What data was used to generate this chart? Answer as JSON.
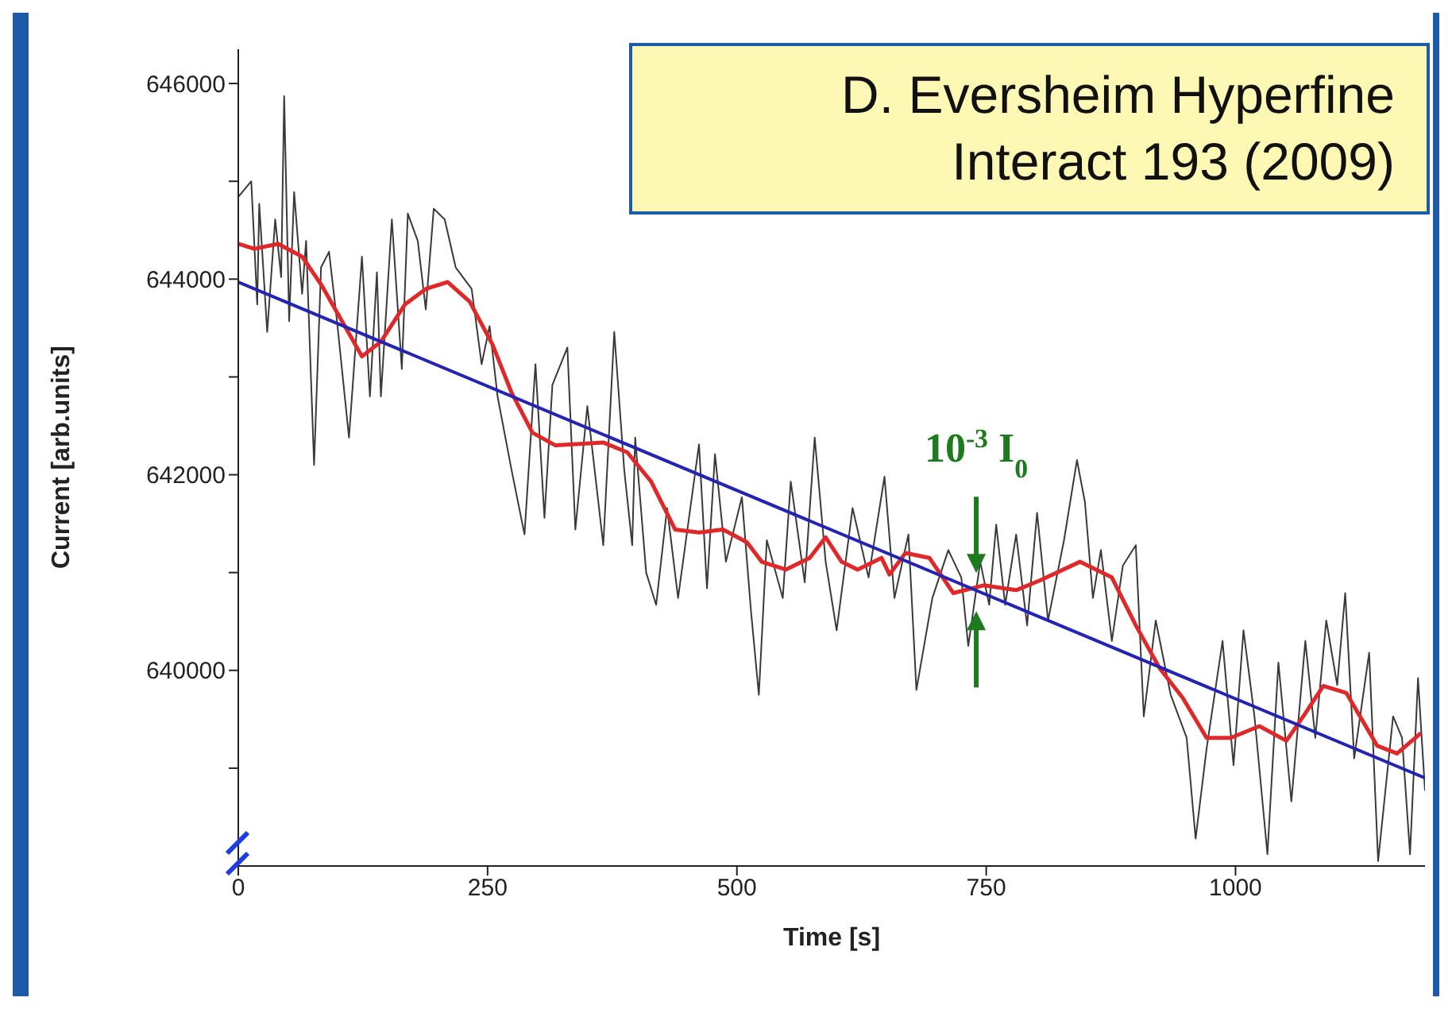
{
  "chart_data": {
    "type": "line",
    "xlabel": "Time [s]",
    "ylabel": "Current [arb.units]",
    "xlim": [
      0,
      1190
    ],
    "ylim": [
      638000,
      646350
    ],
    "xticks": [
      0,
      250,
      500,
      750,
      1000
    ],
    "yticks": [
      {
        "value": 639000,
        "label": null
      },
      640000,
      {
        "value": 641000,
        "label": null
      },
      642000,
      {
        "value": 643000,
        "label": null
      },
      644000,
      {
        "value": 645000,
        "label": null
      },
      646000
    ],
    "marker": "none",
    "line_style": "solid",
    "annotations": [
      "D. Eversheim Hyperfine Interact 193 (2009)",
      {
        "text": "10$^{-3}$ I$_{0}$",
        "x": 740,
        "y": 640800
      }
    ],
    "series": [
      {
        "color": "#3a3a3a",
        "x": [
          0,
          13,
          19,
          21,
          29,
          37,
          43,
          46,
          51,
          56,
          64,
          68,
          76,
          83,
          91,
          99,
          111,
          124,
          132,
          139,
          143,
          154,
          164,
          170,
          180,
          188,
          196,
          207,
          218,
          234,
          244,
          252,
          260,
          274,
          287,
          298,
          307,
          315,
          330,
          338,
          350,
          366,
          377,
          387,
          395,
          398,
          409,
          419,
          430,
          441,
          462,
          470,
          478,
          489,
          505,
          514,
          522,
          530,
          546,
          554,
          568,
          578,
          589,
          600,
          616,
          632,
          648,
          658,
          672,
          680,
          696,
          712,
          725,
          732,
          744,
          753,
          760,
          769,
          780,
          791,
          801,
          812,
          828,
          841,
          849,
          857,
          865,
          876,
          887,
          900,
          908,
          920,
          935,
          951,
          960,
          971,
          987,
          998,
          1008,
          1019,
          1032,
          1043,
          1056,
          1070,
          1080,
          1091,
          1102,
          1110,
          1119,
          1134,
          1143,
          1158,
          1167,
          1175,
          1183,
          1190
        ],
        "values": [
          644840,
          645000,
          643740,
          644770,
          643460,
          644610,
          644020,
          645870,
          643570,
          644890,
          643850,
          644390,
          642100,
          644120,
          644280,
          643570,
          642380,
          644230,
          642800,
          644070,
          642800,
          644610,
          643080,
          644670,
          644390,
          643690,
          644720,
          644610,
          644120,
          643900,
          643130,
          643520,
          642800,
          642050,
          641390,
          643130,
          641560,
          642920,
          643300,
          641440,
          642700,
          641280,
          643460,
          642050,
          641280,
          642380,
          641000,
          640670,
          641660,
          640740,
          642310,
          640840,
          642210,
          641110,
          641770,
          640620,
          639750,
          641330,
          640740,
          641930,
          640900,
          642380,
          641110,
          640410,
          641660,
          640950,
          641980,
          640740,
          641390,
          639800,
          640740,
          641230,
          640950,
          640250,
          641110,
          640670,
          641490,
          640670,
          641390,
          640460,
          641610,
          640510,
          641330,
          642150,
          641720,
          640740,
          641230,
          640300,
          641070,
          641280,
          639530,
          640510,
          639750,
          639310,
          638280,
          639200,
          640300,
          639030,
          640410,
          639530,
          638120,
          640080,
          638660,
          640300,
          639310,
          640510,
          639850,
          640790,
          639100,
          640180,
          638050,
          639530,
          639310,
          638120,
          639920,
          638770
        ]
      },
      {
        "color": "#e02828",
        "x": [
          0,
          16,
          40,
          64,
          84,
          104,
          124,
          143,
          167,
          188,
          210,
          232,
          255,
          274,
          295,
          318,
          366,
          390,
          414,
          438,
          462,
          486,
          510,
          525,
          549,
          573,
          589,
          605,
          621,
          645,
          653,
          669,
          693,
          717,
          748,
          780,
          804,
          844,
          876,
          900,
          924,
          947,
          971,
          995,
          1024,
          1051,
          1070,
          1088,
          1111,
          1142,
          1162,
          1186
        ],
        "values": [
          644360,
          644310,
          644360,
          644230,
          643930,
          643570,
          643210,
          643360,
          643740,
          643900,
          643970,
          643770,
          643330,
          642840,
          642430,
          642300,
          642330,
          642230,
          641930,
          641440,
          641410,
          641440,
          641310,
          641110,
          641030,
          641150,
          641360,
          641110,
          641030,
          641150,
          640980,
          641200,
          641150,
          640790,
          640870,
          640820,
          640920,
          641110,
          640950,
          640460,
          640020,
          639720,
          639310,
          639310,
          639430,
          639280,
          639560,
          639840,
          639770,
          639230,
          639150,
          639360
        ]
      },
      {
        "color": "#2424b4",
        "x": [
          0,
          1190
        ],
        "values": [
          643970,
          638900
        ]
      }
    ]
  }
}
